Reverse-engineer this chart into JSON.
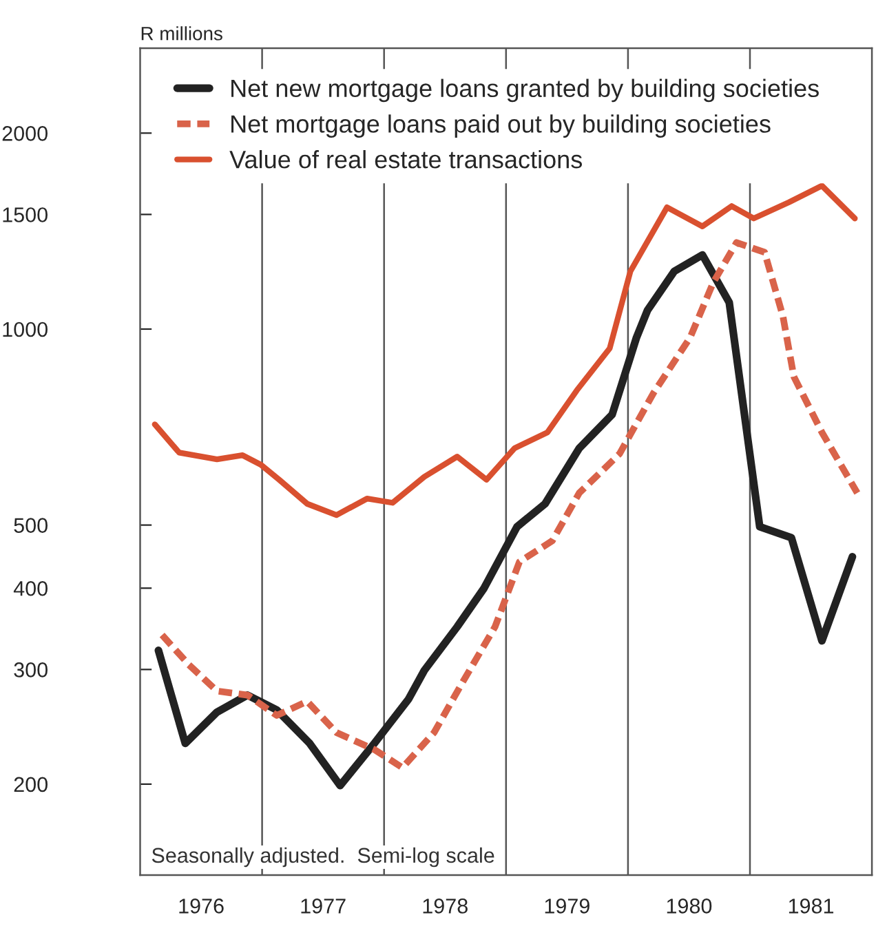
{
  "chart_data": {
    "type": "line",
    "ylabel": "R millions",
    "log": true,
    "ylim": [
      145,
      2700
    ],
    "yticks": [
      200,
      300,
      400,
      500,
      1000,
      1500,
      2000
    ],
    "xlim": [
      1976,
      1982
    ],
    "xticks": [
      {
        "value": 1976.5,
        "label": "1976"
      },
      {
        "value": 1977.5,
        "label": "1977"
      },
      {
        "value": 1978.5,
        "label": "1978"
      },
      {
        "value": 1979.5,
        "label": "1979"
      },
      {
        "value": 1980.5,
        "label": "1980"
      },
      {
        "value": 1981.5,
        "label": "1981"
      }
    ],
    "grid": false,
    "legend": "top left",
    "ref_lines": [
      {
        "axis": "x",
        "value": 1977,
        "color": "#555555"
      },
      {
        "axis": "x",
        "value": 1978,
        "color": "#555555"
      },
      {
        "axis": "x",
        "value": 1979,
        "color": "#555555"
      },
      {
        "axis": "x",
        "value": 1980,
        "color": "#555555"
      },
      {
        "axis": "x",
        "value": 1981,
        "color": "#555555"
      }
    ],
    "annotations": [
      "Seasonally adjusted.  Semi-log scale"
    ],
    "series": [
      {
        "name": "Net new mortgage loans granted by building societies",
        "color": "#222222",
        "line_style": "solid",
        "x": [
          1976.15,
          1976.37,
          1976.63,
          1976.88,
          1977.12,
          1977.39,
          1977.64,
          1977.92,
          1978.2,
          1978.33,
          1978.6,
          1978.82,
          1979.09,
          1979.32,
          1979.6,
          1979.87,
          1980.07,
          1980.16,
          1980.38,
          1980.61,
          1980.83,
          1981.08,
          1981.34,
          1981.59,
          1981.84
        ],
        "values": [
          321,
          231,
          258,
          274,
          260,
          231,
          199,
          231,
          270,
          299,
          349,
          400,
          497,
          539,
          656,
          739,
          971,
          1069,
          1227,
          1300,
          1099,
          497,
          478,
          332,
          447
        ]
      },
      {
        "name": "Net mortgage loans paid out by building societies",
        "color": "#d9634a",
        "line_style": "dashed",
        "x": [
          1976.18,
          1976.4,
          1976.63,
          1976.88,
          1977.12,
          1977.37,
          1977.61,
          1977.92,
          1978.15,
          1978.41,
          1978.64,
          1978.91,
          1979.11,
          1979.38,
          1979.6,
          1979.93,
          1980.21,
          1980.51,
          1980.7,
          1980.89,
          1981.12,
          1981.27,
          1981.36,
          1981.59,
          1981.88
        ],
        "values": [
          339,
          305,
          278,
          274,
          255,
          268,
          240,
          226,
          212,
          240,
          286,
          349,
          439,
          473,
          560,
          643,
          798,
          971,
          1180,
          1358,
          1312,
          1047,
          845,
          694,
          560
        ]
      },
      {
        "name": "Value of real estate transactions",
        "color": "#d9502f",
        "line_style": "solid",
        "x": [
          1976.12,
          1976.32,
          1976.63,
          1976.84,
          1976.99,
          1977.14,
          1977.37,
          1977.61,
          1977.86,
          1978.07,
          1978.33,
          1978.6,
          1978.84,
          1979.07,
          1979.34,
          1979.58,
          1979.85,
          1980.02,
          1980.32,
          1980.61,
          1980.85,
          1981.03,
          1981.32,
          1981.59,
          1981.86
        ],
        "values": [
          714,
          646,
          631,
          640,
          619,
          587,
          539,
          518,
          549,
          541,
          593,
          637,
          587,
          656,
          694,
          805,
          934,
          1227,
          1538,
          1438,
          1545,
          1479,
          1566,
          1660,
          1479
        ]
      }
    ]
  }
}
